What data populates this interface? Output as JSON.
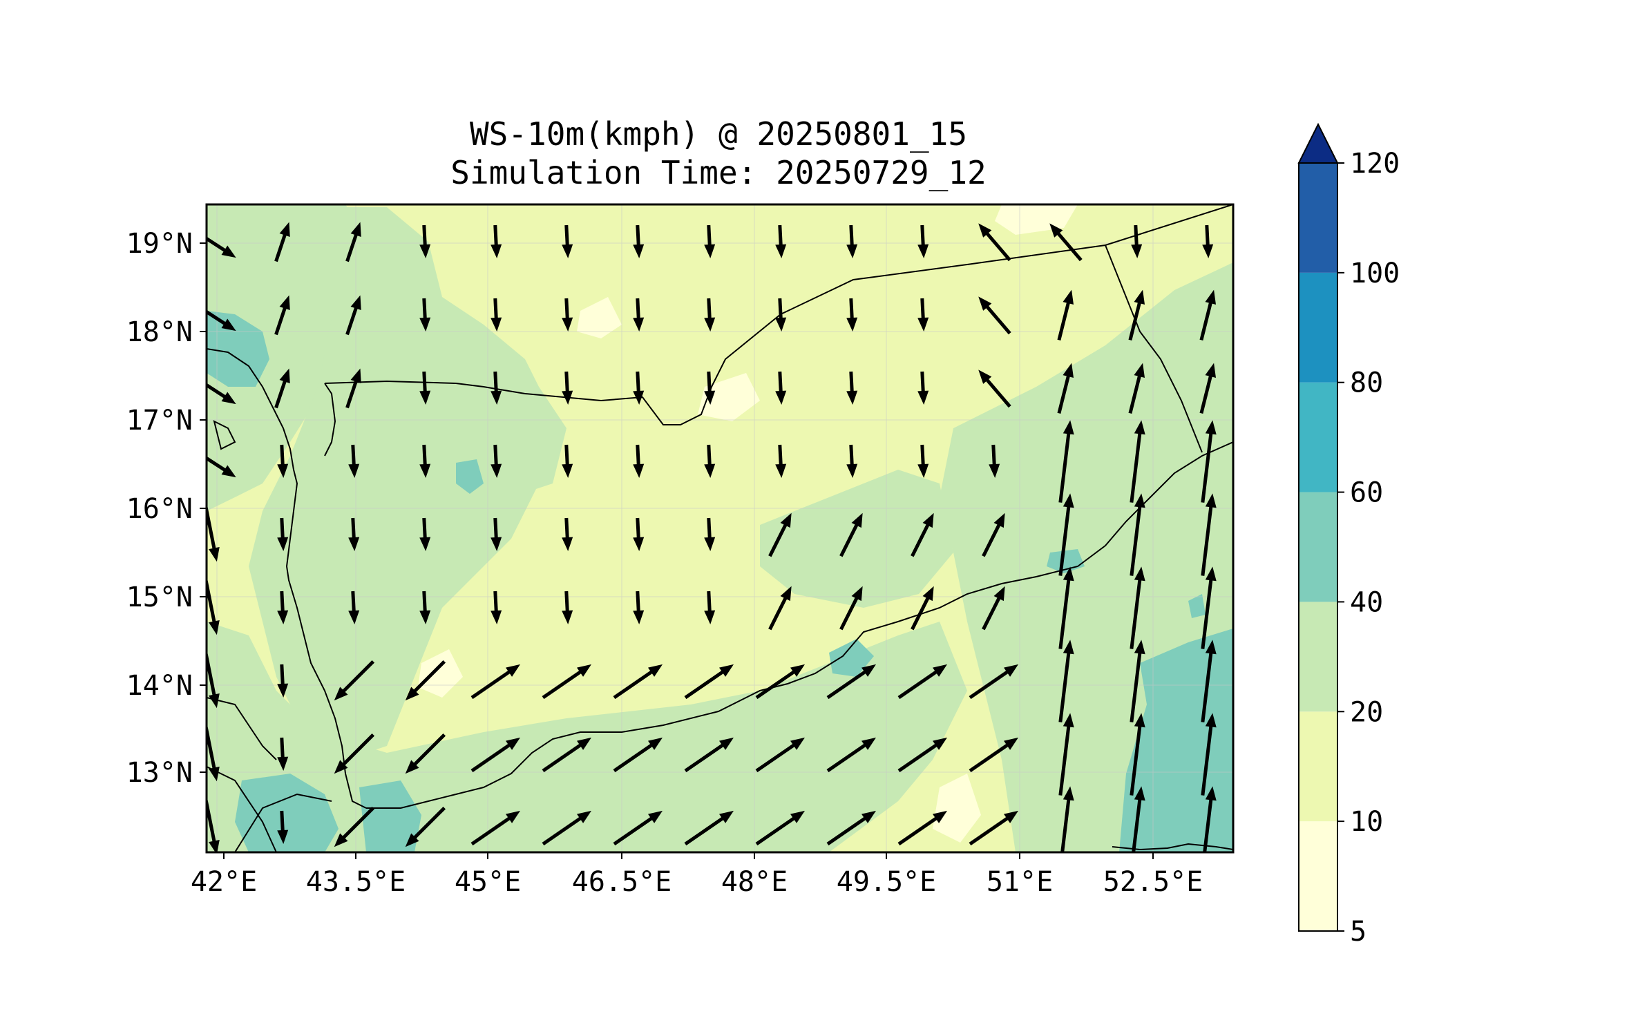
{
  "title_line1": "WS-10m(kmph) @ 20250801_15",
  "title_line2": "Simulation Time: 20250729_12",
  "lon_ticks": [
    "42°E",
    "43.5°E",
    "45°E",
    "46.5°E",
    "48°E",
    "49.5°E",
    "51°E",
    "52.5°E"
  ],
  "lat_ticks": [
    "19°N",
    "18°N",
    "17°N",
    "16°N",
    "15°N",
    "14°N",
    "13°N"
  ],
  "colorbar": {
    "levels": [
      "5",
      "10",
      "20",
      "40",
      "60",
      "80",
      "100",
      "120"
    ],
    "colors": [
      "#ffffd9",
      "#edf8b1",
      "#c7e9b4",
      "#7fcdbb",
      "#41b6c4",
      "#1d91c0",
      "#225ea8",
      "#0c2c84"
    ],
    "extend": "max"
  },
  "map_data": {
    "type": "filled-contour with wind vectors",
    "lon_range": [
      41.9,
      53.5
    ],
    "lat_range": [
      12.1,
      19.45
    ],
    "field": "10 m wind speed (kmph)",
    "background_class": "10-20",
    "higher_speed_regions": [
      "Red Sea coast near 18°N",
      "southern Red Sea / Bab-el-Mandeb",
      "Arabian Sea east of 52.5°E"
    ],
    "vectors_note": "north-easterly to northerly flow over the interior; south-westerly flow over the Gulf of Aden; strong southerly flow along the eastern edge"
  }
}
